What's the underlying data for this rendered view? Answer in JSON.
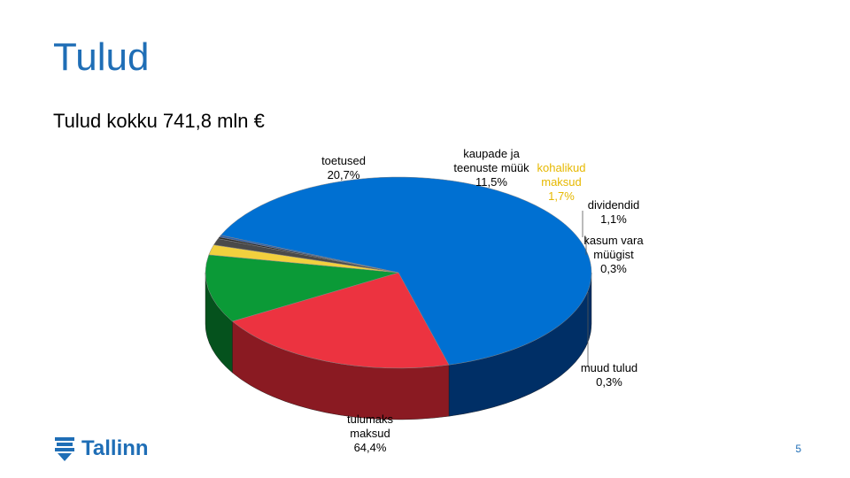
{
  "slide": {
    "title": "Tulud",
    "subtitle": "Tulud kokku 741,8 mln €",
    "page_number": "5",
    "logo_text": "Tallinn"
  },
  "chart_data": {
    "type": "pie",
    "three_d": true,
    "legend": "none",
    "slices": [
      {
        "label_lines": [
          "tulumaks",
          "maksud",
          "64,4%"
        ],
        "value": 64.4,
        "color": "#0070d2",
        "side_color": "#002f66",
        "label_color": "#000000"
      },
      {
        "label_lines": [
          "toetused",
          "20,7%"
        ],
        "value": 20.7,
        "color": "#ec3340",
        "side_color": "#8a1a22",
        "label_color": "#000000"
      },
      {
        "label_lines": [
          "kaupade ja",
          "teenuste müük",
          "11,5%"
        ],
        "value": 11.5,
        "color": "#0b9a37",
        "side_color": "#05521d",
        "label_color": "#000000"
      },
      {
        "label_lines": [
          "kohalikud",
          "maksud",
          "1,7%"
        ],
        "value": 1.7,
        "color": "#f2d03e",
        "side_color": "#8a7420",
        "label_color": "#e6b800"
      },
      {
        "label_lines": [
          "dividendid",
          "1,1%"
        ],
        "value": 1.1,
        "color": "#4a4a4a",
        "side_color": "#222222",
        "label_color": "#000000"
      },
      {
        "label_lines": [
          "kasum vara",
          "müügist",
          "0,3%"
        ],
        "value": 0.3,
        "color": "#2b2b2b",
        "side_color": "#111111",
        "label_color": "#000000"
      },
      {
        "label_lines": [
          "muud tulud",
          "0,3%"
        ],
        "value": 0.3,
        "color": "#2f5fa8",
        "side_color": "#1a3563",
        "label_color": "#000000"
      }
    ]
  }
}
